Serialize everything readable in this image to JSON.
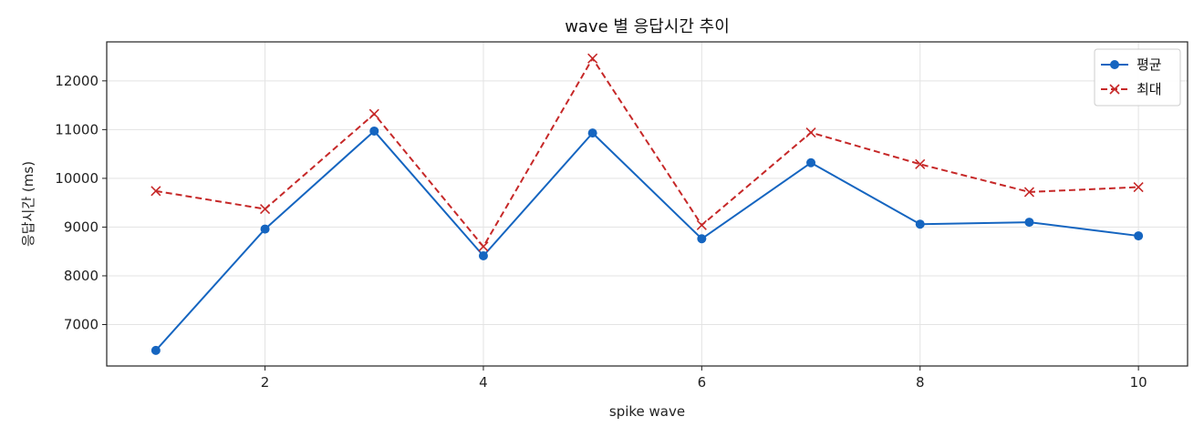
{
  "chart_data": {
    "type": "line",
    "title": "wave 별 응답시간 추이",
    "xlabel": "spike wave",
    "ylabel": "응답시간 (ms)",
    "x": [
      1,
      2,
      3,
      4,
      5,
      6,
      7,
      8,
      9,
      10
    ],
    "xlim": [
      0.55,
      10.45
    ],
    "ylim": [
      6150,
      12800
    ],
    "x_ticks": [
      2,
      4,
      6,
      8,
      10
    ],
    "y_ticks": [
      7000,
      8000,
      9000,
      10000,
      11000,
      12000
    ],
    "grid": true,
    "legend_position": "top-right",
    "series": [
      {
        "name": "평균",
        "color": "#1565c0",
        "line_style": "solid",
        "marker": "circle",
        "values": [
          6470,
          8960,
          10970,
          8410,
          10930,
          8760,
          10320,
          9060,
          9100,
          8820
        ]
      },
      {
        "name": "최대",
        "color": "#c62828",
        "line_style": "dashed",
        "marker": "x",
        "values": [
          9740,
          9370,
          11320,
          8600,
          12460,
          9040,
          10940,
          10290,
          9720,
          9820
        ]
      }
    ]
  }
}
